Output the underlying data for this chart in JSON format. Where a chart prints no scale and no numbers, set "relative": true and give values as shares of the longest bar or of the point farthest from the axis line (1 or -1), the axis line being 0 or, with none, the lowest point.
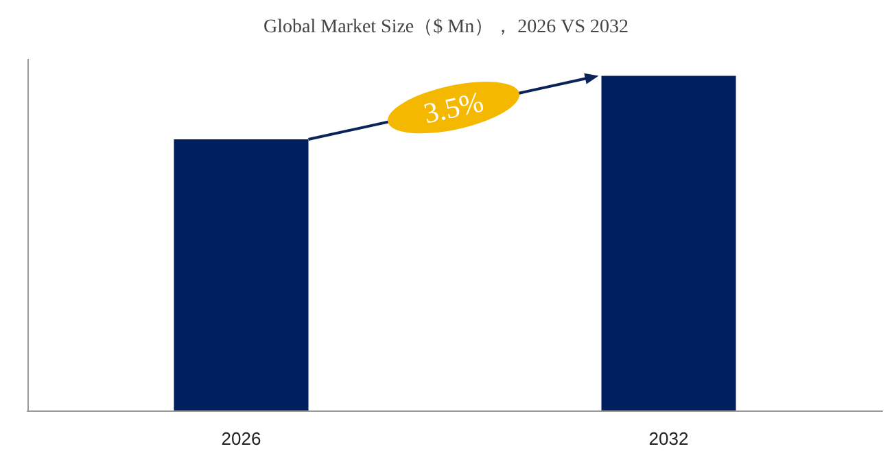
{
  "chart_data": {
    "type": "bar",
    "title": "Global Market Size（$ Mn）， 2026 VS 2032",
    "categories": [
      "2026",
      "2032"
    ],
    "values": [
      0.81,
      1
    ],
    "color": "#001f5f",
    "relative": true,
    "annotations": [
      "3.5%"
    ]
  }
}
